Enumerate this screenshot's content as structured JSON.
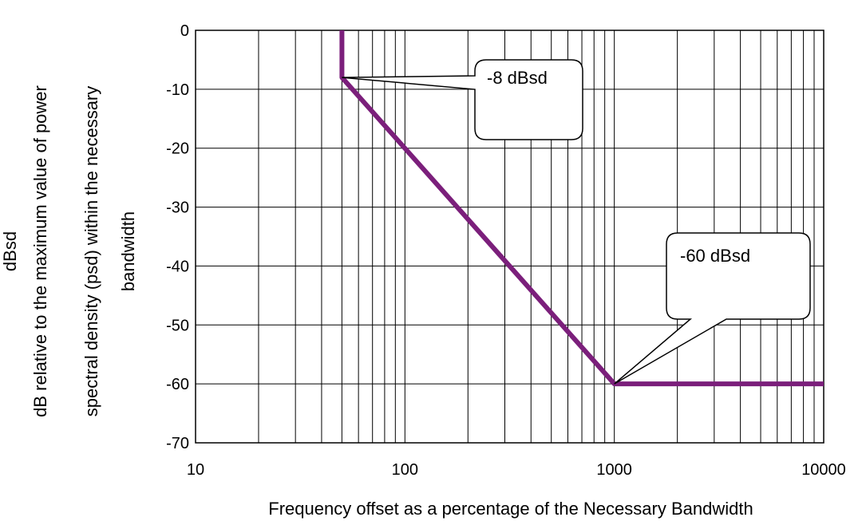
{
  "chart_data": {
    "type": "line",
    "x_scale": "log",
    "xlim": [
      10,
      10000
    ],
    "ylim": [
      -70,
      0
    ],
    "x_ticks": [
      10,
      100,
      1000,
      10000
    ],
    "x_tick_labels": [
      "10",
      "100",
      "1000",
      "10000"
    ],
    "y_ticks": [
      0,
      -10,
      -20,
      -30,
      -40,
      -50,
      -60,
      -70
    ],
    "y_tick_labels": [
      "0",
      "-10",
      "-20",
      "-30",
      "-40",
      "-50",
      "-60",
      "-70"
    ],
    "grid": true,
    "xlabel": "Frequency offset as a percentage of the Necessary Bandwidth",
    "ylabel_lines": [
      "dBsd",
      "dB relative to the maximum value of power",
      "spectral density (psd) within the necessary",
      "bandwidth"
    ],
    "series": [
      {
        "color": "#7b1f7b",
        "points": [
          [
            50,
            0
          ],
          [
            50,
            -8
          ],
          [
            1000,
            -60
          ],
          [
            10000,
            -60
          ]
        ]
      }
    ],
    "annotations": [
      {
        "text": "-8 dBsd",
        "x": 50,
        "y": -8
      },
      {
        "text": "-60 dBsd",
        "x": 1000,
        "y": -60
      }
    ]
  }
}
